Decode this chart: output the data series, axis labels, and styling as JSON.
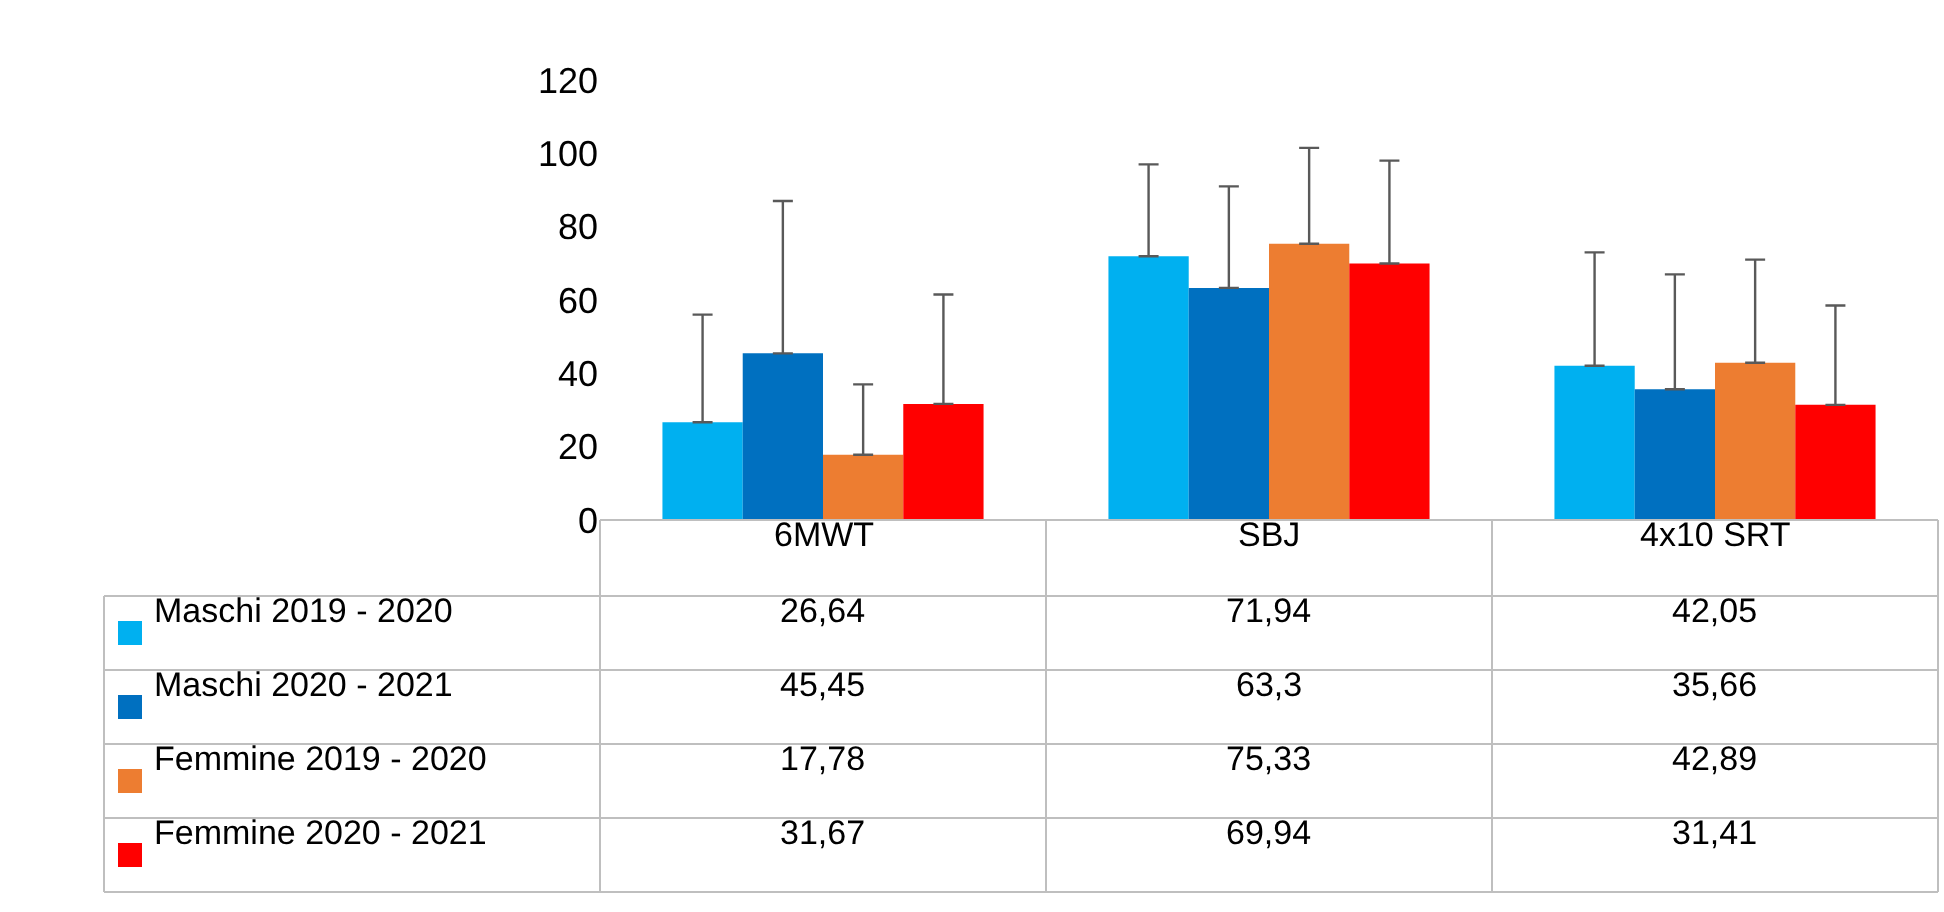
{
  "chart_data": {
    "type": "bar",
    "categories": [
      "6MWT",
      "SBJ",
      "4x10 SRT"
    ],
    "series": [
      {
        "name": "Maschi 2019 - 2020",
        "color": "#00b0f0",
        "values": [
          26.64,
          71.94,
          42.05
        ],
        "value_labels": [
          "26,64",
          "71,94",
          "42,05"
        ],
        "errors": [
          [
            26.64,
            56
          ],
          [
            71.94,
            97
          ],
          [
            42.05,
            73
          ]
        ]
      },
      {
        "name": "Maschi 2020 - 2021",
        "color": "#0070c0",
        "values": [
          45.45,
          63.3,
          35.66
        ],
        "value_labels": [
          "45,45",
          "63,3",
          "35,66"
        ],
        "errors": [
          [
            45.45,
            87
          ],
          [
            63.3,
            91
          ],
          [
            35.66,
            67
          ]
        ]
      },
      {
        "name": "Femmine 2019 - 2020",
        "color": "#ed7d31",
        "values": [
          17.78,
          75.33,
          42.89
        ],
        "value_labels": [
          "17,78",
          "75,33",
          "42,89"
        ],
        "errors": [
          [
            17.78,
            37
          ],
          [
            75.33,
            101.5
          ],
          [
            42.89,
            71
          ]
        ]
      },
      {
        "name": "Femmine 2020 - 2021",
        "color": "#ff0000",
        "values": [
          31.67,
          69.94,
          31.41
        ],
        "value_labels": [
          "31,67",
          "69,94",
          "31,41"
        ],
        "errors": [
          [
            31.67,
            61.5
          ],
          [
            69.94,
            98
          ],
          [
            31.41,
            58.5
          ]
        ]
      }
    ],
    "ylim": [
      0,
      120
    ],
    "yticks": [
      0,
      20,
      40,
      60,
      80,
      100,
      120
    ],
    "grid": false,
    "legend": "bottom"
  }
}
